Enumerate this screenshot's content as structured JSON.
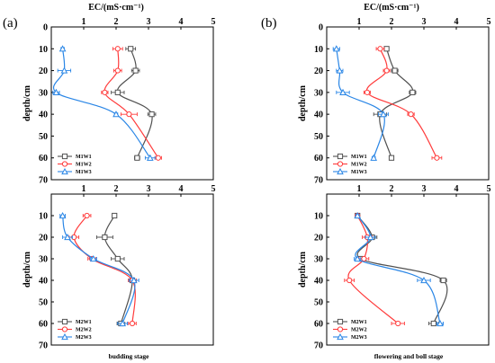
{
  "figure": {
    "x_axis_title": "EC/(mS·cm⁻¹)",
    "y_axis_title": "depth/cm",
    "panel_labels": [
      "(a)",
      "(b)"
    ],
    "stage_labels": [
      "budding stage",
      "flowering and boll stage"
    ]
  },
  "colors": {
    "W1": "#505050",
    "W2": "#ff3b3b",
    "W3": "#2a86e6"
  },
  "chart_data": [
    {
      "type": "line",
      "id": "a-top",
      "xlabel": "EC/(mS·cm⁻¹)",
      "ylabel": "depth/cm",
      "xlim": [
        0,
        5
      ],
      "ylim": [
        0,
        70
      ],
      "y_inverted": true,
      "x_ticks": [
        1,
        2,
        3,
        4,
        5
      ],
      "y_ticks": [
        0,
        10,
        20,
        30,
        40,
        50,
        60,
        70
      ],
      "legend_position": "bottom-left",
      "series": [
        {
          "name": "M1W1",
          "marker": "square",
          "color_key": "W1",
          "y": [
            10,
            20,
            30,
            40,
            60
          ],
          "x": [
            2.45,
            2.6,
            2.05,
            3.1,
            2.65
          ],
          "err": [
            0.15,
            0.12,
            0.2,
            0.12,
            0.08
          ]
        },
        {
          "name": "M1W2",
          "marker": "circle",
          "color_key": "W2",
          "y": [
            10,
            20,
            30,
            40,
            60
          ],
          "x": [
            2.05,
            2.05,
            1.65,
            2.4,
            3.3
          ],
          "err": [
            0.15,
            0.12,
            0.1,
            0.25,
            0.1
          ]
        },
        {
          "name": "M1W3",
          "marker": "triangle",
          "color_key": "W3",
          "y": [
            10,
            20,
            30,
            40,
            60
          ],
          "x": [
            0.35,
            0.4,
            0.15,
            2.0,
            3.05
          ],
          "err": [
            0.05,
            0.2,
            0.1,
            0.05,
            0.15
          ]
        }
      ]
    },
    {
      "type": "line",
      "id": "a-bottom",
      "xlabel": "",
      "ylabel": "depth/cm",
      "xlim": [
        0,
        5
      ],
      "ylim": [
        0,
        70
      ],
      "y_inverted": true,
      "x_ticks": [
        1,
        2,
        3,
        4,
        5
      ],
      "y_ticks": [
        10,
        20,
        30,
        40,
        50,
        60,
        70
      ],
      "legend_position": "bottom-left",
      "series": [
        {
          "name": "M2W1",
          "marker": "square",
          "color_key": "W1",
          "y": [
            10,
            20,
            30,
            40,
            60
          ],
          "x": [
            1.95,
            1.65,
            2.05,
            2.5,
            2.15
          ],
          "err": [
            0.05,
            0.25,
            0.2,
            0.12,
            0.12
          ]
        },
        {
          "name": "M2W2",
          "marker": "circle",
          "color_key": "W2",
          "y": [
            10,
            20,
            30,
            40,
            60
          ],
          "x": [
            1.1,
            0.7,
            1.25,
            2.5,
            2.5
          ],
          "err": [
            0.12,
            0.15,
            0.12,
            0.12,
            0.12
          ]
        },
        {
          "name": "M2W3",
          "marker": "triangle",
          "color_key": "W3",
          "y": [
            10,
            20,
            30,
            40,
            60
          ],
          "x": [
            0.35,
            0.5,
            1.3,
            2.55,
            2.2
          ],
          "err": [
            0.08,
            0.15,
            0.1,
            0.15,
            0.15
          ]
        }
      ]
    },
    {
      "type": "line",
      "id": "b-top",
      "xlabel": "EC/(mS·cm⁻¹)",
      "ylabel": "depth/cm",
      "xlim": [
        0,
        5
      ],
      "ylim": [
        0,
        70
      ],
      "y_inverted": true,
      "x_ticks": [
        1,
        2,
        3,
        4,
        5
      ],
      "y_ticks": [
        0,
        10,
        20,
        30,
        40,
        50,
        60,
        70
      ],
      "legend_position": "bottom-left",
      "series": [
        {
          "name": "M1W1",
          "marker": "square",
          "color_key": "W1",
          "y": [
            10,
            20,
            30,
            40,
            60
          ],
          "x": [
            1.85,
            2.1,
            2.65,
            1.65,
            2.0
          ],
          "err": [
            0.05,
            0.1,
            0.1,
            0.2,
            0.05
          ]
        },
        {
          "name": "M1W2",
          "marker": "circle",
          "color_key": "W2",
          "y": [
            10,
            20,
            30,
            40,
            60
          ],
          "x": [
            1.65,
            1.85,
            1.25,
            2.6,
            3.4
          ],
          "err": [
            0.12,
            0.1,
            0.1,
            0.1,
            0.15
          ]
        },
        {
          "name": "M1W3",
          "marker": "triangle",
          "color_key": "W3",
          "y": [
            10,
            20,
            30,
            40,
            60
          ],
          "x": [
            0.3,
            0.4,
            0.5,
            1.75,
            1.45
          ],
          "err": [
            0.1,
            0.1,
            0.2,
            0.15,
            0.05
          ]
        }
      ]
    },
    {
      "type": "line",
      "id": "b-bottom",
      "xlabel": "",
      "ylabel": "depth/cm",
      "xlim": [
        0,
        5
      ],
      "ylim": [
        0,
        70
      ],
      "y_inverted": true,
      "x_ticks": [
        1,
        2,
        3,
        4,
        5
      ],
      "y_ticks": [
        10,
        20,
        30,
        40,
        50,
        60,
        70
      ],
      "legend_position": "bottom-left",
      "series": [
        {
          "name": "M2W1",
          "marker": "square",
          "color_key": "W1",
          "y": [
            10,
            20,
            30,
            40,
            60
          ],
          "x": [
            0.95,
            1.4,
            1.05,
            3.6,
            3.3
          ],
          "err": [
            0.05,
            0.15,
            0.1,
            0.1,
            0.15
          ]
        },
        {
          "name": "M2W2",
          "marker": "circle",
          "color_key": "W2",
          "y": [
            10,
            20,
            30,
            40,
            60
          ],
          "x": [
            0.95,
            1.25,
            1.15,
            0.7,
            2.2
          ],
          "err": [
            0.05,
            0.15,
            0.15,
            0.15,
            0.2
          ]
        },
        {
          "name": "M2W3",
          "marker": "triangle",
          "color_key": "W3",
          "y": [
            10,
            20,
            30,
            40,
            60
          ],
          "x": [
            0.95,
            1.35,
            0.95,
            3.0,
            3.5
          ],
          "err": [
            0.05,
            0.15,
            0.1,
            0.2,
            0.1
          ]
        }
      ]
    }
  ]
}
